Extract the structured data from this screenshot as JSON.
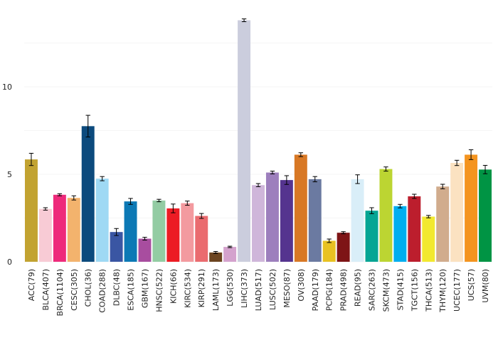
{
  "chart_data": {
    "type": "bar",
    "title": "",
    "xlabel": "",
    "ylabel": "",
    "ylim": [
      0,
      14
    ],
    "yticks": [
      0,
      5,
      10
    ],
    "grid": true,
    "error_bars": true,
    "categories": [
      "ACC(79)",
      "BLCA(407)",
      "BRCA(1104)",
      "CESC(305)",
      "CHOL(36)",
      "COAD(288)",
      "DLBC(48)",
      "ESCA(185)",
      "GBM(167)",
      "HNSC(522)",
      "KICH(66)",
      "KIRC(534)",
      "KIRP(291)",
      "LAML(173)",
      "LGG(530)",
      "LIHC(373)",
      "LUAD(517)",
      "LUSC(502)",
      "MESO(87)",
      "OV(308)",
      "PAAD(179)",
      "PCPG(184)",
      "PRAD(498)",
      "READ(95)",
      "SARC(263)",
      "SKCM(473)",
      "STAD(415)",
      "TGCT(156)",
      "THCA(513)",
      "THYM(120)",
      "UCEC(177)",
      "UCS(57)",
      "UVM(80)"
    ],
    "values": [
      5.85,
      3.02,
      3.83,
      3.65,
      7.75,
      4.75,
      1.7,
      3.45,
      1.32,
      3.5,
      3.05,
      3.35,
      2.62,
      0.53,
      0.85,
      13.8,
      4.38,
      5.1,
      4.67,
      6.12,
      4.72,
      1.2,
      1.66,
      4.72,
      2.92,
      5.3,
      3.18,
      3.74,
      2.58,
      4.3,
      5.65,
      6.12,
      5.27
    ],
    "errors": [
      0.35,
      0.07,
      0.06,
      0.12,
      0.62,
      0.12,
      0.2,
      0.17,
      0.08,
      0.07,
      0.25,
      0.12,
      0.14,
      0.06,
      0.04,
      0.08,
      0.09,
      0.08,
      0.25,
      0.11,
      0.15,
      0.1,
      0.06,
      0.25,
      0.17,
      0.12,
      0.1,
      0.12,
      0.07,
      0.13,
      0.15,
      0.28,
      0.24
    ],
    "colors": [
      "#c2a331",
      "#f8cbd5",
      "#ee2a7b",
      "#f3b36d",
      "#0c4a7d",
      "#9fd9f4",
      "#3a56a3",
      "#0c79b5",
      "#a84d9f",
      "#93cca3",
      "#ec1c24",
      "#f39a9f",
      "#ea6b6f",
      "#6b4420",
      "#d4a2cd",
      "#cbcddd",
      "#cfb6da",
      "#9d7fbd",
      "#55348f",
      "#d87825",
      "#6b7aa1",
      "#e9c222",
      "#7e1416",
      "#d9eef8",
      "#05a594",
      "#bcd532",
      "#00aeef",
      "#bc1e2d",
      "#f2e92f",
      "#d1ac8d",
      "#fbe2c1",
      "#f4941f",
      "#009444"
    ]
  }
}
